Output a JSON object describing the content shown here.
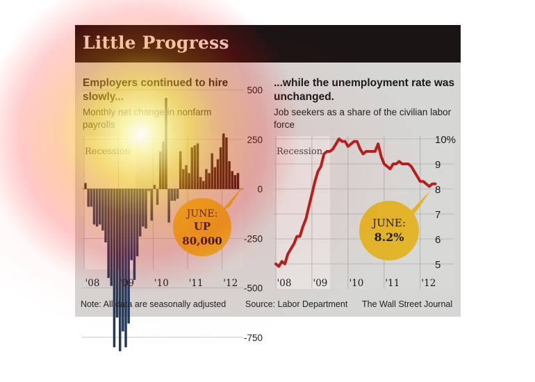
{
  "title": "Little Progress",
  "left_panel": {
    "heading": "Employers continued to hire slowly...",
    "subheading": "Monthly net change in nonfarm payrolls",
    "recession_label": "Recession",
    "callout": {
      "line1": "JUNE:",
      "line2": "UP",
      "line3": "80,000"
    }
  },
  "right_panel": {
    "heading": "...while the unemployment rate was unchanged.",
    "subheading": "Job seekers as a share of the civilian labor force",
    "recession_label": "Recession",
    "callout": {
      "line1": "JUNE:",
      "line2": "8.2%"
    }
  },
  "footer": {
    "note": "Note: All data are seasonally adjusted",
    "source": "Source: Labor Department",
    "credit": "The Wall Street Journal"
  },
  "colors": {
    "header_bg": "#1b1414",
    "bars_positive": "#2b1517",
    "bars_negative": "#223a5e",
    "line": "#b3201d",
    "callout": "#e2b52a",
    "recession_shade": "#e6e6e4"
  },
  "chart_data": [
    {
      "type": "bar",
      "title": "Employers continued to hire slowly...",
      "ylabel": "Monthly net change in nonfarm payrolls",
      "x_tick_labels": [
        "'08",
        "'09",
        "'10",
        "'11",
        "'12"
      ],
      "y_tick_labels": [
        "500",
        "250",
        "0",
        "-250",
        "-500",
        "-750"
      ],
      "ylim": [
        -800,
        500
      ],
      "recession": [
        "2008-01",
        "2009-06"
      ],
      "dates": [
        "2008-01",
        "2008-02",
        "2008-03",
        "2008-04",
        "2008-05",
        "2008-06",
        "2008-07",
        "2008-08",
        "2008-09",
        "2008-10",
        "2008-11",
        "2008-12",
        "2009-01",
        "2009-02",
        "2009-03",
        "2009-04",
        "2009-05",
        "2009-06",
        "2009-07",
        "2009-08",
        "2009-09",
        "2009-10",
        "2009-11",
        "2009-12",
        "2010-01",
        "2010-02",
        "2010-03",
        "2010-04",
        "2010-05",
        "2010-06",
        "2010-07",
        "2010-08",
        "2010-09",
        "2010-10",
        "2010-11",
        "2010-12",
        "2011-01",
        "2011-02",
        "2011-03",
        "2011-04",
        "2011-05",
        "2011-06",
        "2011-07",
        "2011-08",
        "2011-09",
        "2011-10",
        "2011-11",
        "2011-12",
        "2012-01",
        "2012-02",
        "2012-03",
        "2012-04",
        "2012-05",
        "2012-06"
      ],
      "values": [
        30,
        -90,
        -90,
        -180,
        -190,
        -180,
        -210,
        -270,
        -450,
        -490,
        -800,
        -650,
        -820,
        -720,
        -800,
        -680,
        -360,
        -460,
        -340,
        -240,
        -190,
        -200,
        -10,
        -160,
        20,
        -80,
        190,
        240,
        460,
        -170,
        -60,
        -60,
        -50,
        190,
        100,
        120,
        80,
        210,
        220,
        230,
        60,
        40,
        100,
        80,
        180,
        110,
        150,
        210,
        280,
        260,
        140,
        90,
        70,
        80
      ],
      "callout": "JUNE: UP 80,000"
    },
    {
      "type": "line",
      "title": "...while the unemployment rate was unchanged.",
      "ylabel": "Job seekers as a share of the civilian labor force",
      "x_tick_labels": [
        "'08",
        "'09",
        "'10",
        "'11",
        "'12"
      ],
      "y_tick_labels": [
        "10%",
        "9",
        "8",
        "7",
        "6",
        "5"
      ],
      "ylim": [
        4.5,
        10
      ],
      "recession": [
        "2008-01",
        "2009-06"
      ],
      "dates": [
        "2008-01",
        "2008-02",
        "2008-03",
        "2008-04",
        "2008-05",
        "2008-06",
        "2008-07",
        "2008-08",
        "2008-09",
        "2008-10",
        "2008-11",
        "2008-12",
        "2009-01",
        "2009-02",
        "2009-03",
        "2009-04",
        "2009-05",
        "2009-06",
        "2009-07",
        "2009-08",
        "2009-09",
        "2009-10",
        "2009-11",
        "2009-12",
        "2010-01",
        "2010-02",
        "2010-03",
        "2010-04",
        "2010-05",
        "2010-06",
        "2010-07",
        "2010-08",
        "2010-09",
        "2010-10",
        "2010-11",
        "2010-12",
        "2011-01",
        "2011-02",
        "2011-03",
        "2011-04",
        "2011-05",
        "2011-06",
        "2011-07",
        "2011-08",
        "2011-09",
        "2011-10",
        "2011-11",
        "2011-12",
        "2012-01",
        "2012-02",
        "2012-03",
        "2012-04",
        "2012-05",
        "2012-06"
      ],
      "values": [
        5.0,
        4.9,
        5.1,
        5.0,
        5.4,
        5.6,
        5.8,
        6.1,
        6.1,
        6.5,
        6.8,
        7.3,
        7.8,
        8.3,
        8.7,
        8.9,
        9.4,
        9.5,
        9.5,
        9.6,
        9.8,
        10.0,
        9.9,
        9.9,
        9.7,
        9.8,
        9.9,
        9.9,
        9.6,
        9.4,
        9.5,
        9.5,
        9.5,
        9.5,
        9.8,
        9.3,
        9.0,
        8.9,
        8.8,
        9.0,
        9.0,
        9.1,
        9.0,
        9.0,
        9.0,
        8.9,
        8.7,
        8.5,
        8.3,
        8.3,
        8.2,
        8.1,
        8.2,
        8.2
      ],
      "callout": "JUNE: 8.2%"
    }
  ]
}
